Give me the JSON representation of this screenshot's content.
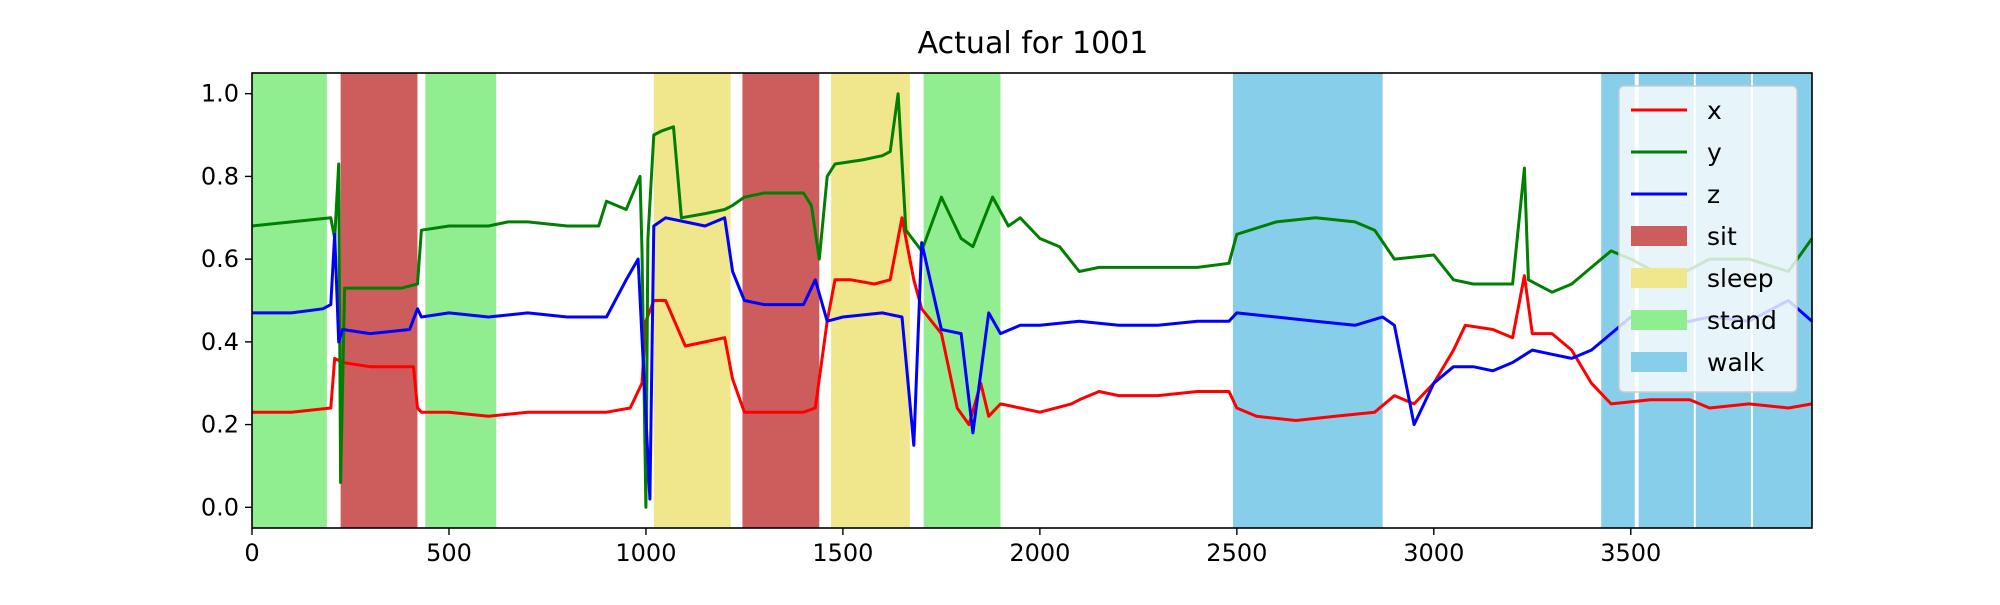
{
  "chart_data": {
    "type": "line",
    "title": "Actual for 1001",
    "xlabel": "",
    "ylabel": "",
    "xlim": [
      0,
      3960
    ],
    "ylim": [
      -0.05,
      1.05
    ],
    "x_ticks": [
      0,
      500,
      1000,
      1500,
      2000,
      2500,
      3000,
      3500
    ],
    "y_ticks": [
      0.0,
      0.2,
      0.4,
      0.6,
      0.8,
      1.0
    ],
    "grid": false,
    "legend_position": "top-right",
    "series": [
      {
        "name": "x",
        "color": "#ff0000",
        "points": [
          [
            0,
            0.23
          ],
          [
            100,
            0.23
          ],
          [
            200,
            0.24
          ],
          [
            210,
            0.36
          ],
          [
            230,
            0.35
          ],
          [
            300,
            0.34
          ],
          [
            410,
            0.34
          ],
          [
            420,
            0.24
          ],
          [
            430,
            0.23
          ],
          [
            500,
            0.23
          ],
          [
            600,
            0.22
          ],
          [
            700,
            0.23
          ],
          [
            800,
            0.23
          ],
          [
            900,
            0.23
          ],
          [
            960,
            0.24
          ],
          [
            990,
            0.3
          ],
          [
            1000,
            0.45
          ],
          [
            1020,
            0.5
          ],
          [
            1050,
            0.5
          ],
          [
            1100,
            0.39
          ],
          [
            1150,
            0.4
          ],
          [
            1200,
            0.41
          ],
          [
            1220,
            0.31
          ],
          [
            1250,
            0.23
          ],
          [
            1300,
            0.23
          ],
          [
            1400,
            0.23
          ],
          [
            1430,
            0.24
          ],
          [
            1460,
            0.45
          ],
          [
            1480,
            0.55
          ],
          [
            1520,
            0.55
          ],
          [
            1580,
            0.54
          ],
          [
            1620,
            0.55
          ],
          [
            1650,
            0.7
          ],
          [
            1680,
            0.55
          ],
          [
            1700,
            0.48
          ],
          [
            1750,
            0.42
          ],
          [
            1790,
            0.24
          ],
          [
            1820,
            0.2
          ],
          [
            1850,
            0.3
          ],
          [
            1870,
            0.22
          ],
          [
            1900,
            0.25
          ],
          [
            1950,
            0.24
          ],
          [
            2000,
            0.23
          ],
          [
            2080,
            0.25
          ],
          [
            2100,
            0.26
          ],
          [
            2150,
            0.28
          ],
          [
            2200,
            0.27
          ],
          [
            2300,
            0.27
          ],
          [
            2400,
            0.28
          ],
          [
            2480,
            0.28
          ],
          [
            2500,
            0.24
          ],
          [
            2550,
            0.22
          ],
          [
            2650,
            0.21
          ],
          [
            2750,
            0.22
          ],
          [
            2850,
            0.23
          ],
          [
            2900,
            0.27
          ],
          [
            2950,
            0.25
          ],
          [
            3000,
            0.3
          ],
          [
            3050,
            0.38
          ],
          [
            3080,
            0.44
          ],
          [
            3150,
            0.43
          ],
          [
            3200,
            0.41
          ],
          [
            3230,
            0.56
          ],
          [
            3250,
            0.42
          ],
          [
            3300,
            0.42
          ],
          [
            3350,
            0.38
          ],
          [
            3400,
            0.3
          ],
          [
            3450,
            0.25
          ],
          [
            3550,
            0.26
          ],
          [
            3650,
            0.26
          ],
          [
            3700,
            0.24
          ],
          [
            3800,
            0.25
          ],
          [
            3900,
            0.24
          ],
          [
            3960,
            0.25
          ]
        ]
      },
      {
        "name": "y",
        "color": "#008000",
        "points": [
          [
            0,
            0.68
          ],
          [
            100,
            0.69
          ],
          [
            200,
            0.7
          ],
          [
            210,
            0.65
          ],
          [
            220,
            0.83
          ],
          [
            225,
            0.06
          ],
          [
            235,
            0.53
          ],
          [
            300,
            0.53
          ],
          [
            380,
            0.53
          ],
          [
            420,
            0.54
          ],
          [
            430,
            0.67
          ],
          [
            500,
            0.68
          ],
          [
            580,
            0.68
          ],
          [
            600,
            0.68
          ],
          [
            650,
            0.69
          ],
          [
            700,
            0.69
          ],
          [
            800,
            0.68
          ],
          [
            880,
            0.68
          ],
          [
            900,
            0.74
          ],
          [
            950,
            0.72
          ],
          [
            985,
            0.8
          ],
          [
            990,
            0.62
          ],
          [
            1000,
            0.0
          ],
          [
            1005,
            0.65
          ],
          [
            1020,
            0.9
          ],
          [
            1040,
            0.91
          ],
          [
            1070,
            0.92
          ],
          [
            1090,
            0.7
          ],
          [
            1150,
            0.71
          ],
          [
            1200,
            0.72
          ],
          [
            1220,
            0.73
          ],
          [
            1250,
            0.75
          ],
          [
            1300,
            0.76
          ],
          [
            1400,
            0.76
          ],
          [
            1420,
            0.73
          ],
          [
            1440,
            0.6
          ],
          [
            1460,
            0.8
          ],
          [
            1480,
            0.83
          ],
          [
            1550,
            0.84
          ],
          [
            1600,
            0.85
          ],
          [
            1620,
            0.86
          ],
          [
            1640,
            1.0
          ],
          [
            1660,
            0.67
          ],
          [
            1700,
            0.62
          ],
          [
            1750,
            0.75
          ],
          [
            1800,
            0.65
          ],
          [
            1830,
            0.63
          ],
          [
            1880,
            0.75
          ],
          [
            1920,
            0.68
          ],
          [
            1950,
            0.7
          ],
          [
            2000,
            0.65
          ],
          [
            2050,
            0.63
          ],
          [
            2100,
            0.57
          ],
          [
            2150,
            0.58
          ],
          [
            2200,
            0.58
          ],
          [
            2300,
            0.58
          ],
          [
            2400,
            0.58
          ],
          [
            2480,
            0.59
          ],
          [
            2500,
            0.66
          ],
          [
            2600,
            0.69
          ],
          [
            2700,
            0.7
          ],
          [
            2800,
            0.69
          ],
          [
            2850,
            0.67
          ],
          [
            2900,
            0.6
          ],
          [
            3000,
            0.61
          ],
          [
            3050,
            0.55
          ],
          [
            3100,
            0.54
          ],
          [
            3200,
            0.54
          ],
          [
            3230,
            0.82
          ],
          [
            3240,
            0.55
          ],
          [
            3300,
            0.52
          ],
          [
            3350,
            0.54
          ],
          [
            3400,
            0.58
          ],
          [
            3450,
            0.62
          ],
          [
            3500,
            0.6
          ],
          [
            3600,
            0.55
          ],
          [
            3700,
            0.6
          ],
          [
            3800,
            0.6
          ],
          [
            3900,
            0.57
          ],
          [
            3960,
            0.65
          ]
        ]
      },
      {
        "name": "z",
        "color": "#0000ff",
        "points": [
          [
            0,
            0.47
          ],
          [
            100,
            0.47
          ],
          [
            180,
            0.48
          ],
          [
            200,
            0.49
          ],
          [
            210,
            0.66
          ],
          [
            220,
            0.4
          ],
          [
            230,
            0.43
          ],
          [
            300,
            0.42
          ],
          [
            400,
            0.43
          ],
          [
            420,
            0.48
          ],
          [
            430,
            0.46
          ],
          [
            500,
            0.47
          ],
          [
            600,
            0.46
          ],
          [
            700,
            0.47
          ],
          [
            800,
            0.46
          ],
          [
            900,
            0.46
          ],
          [
            950,
            0.55
          ],
          [
            980,
            0.6
          ],
          [
            1000,
            0.22
          ],
          [
            1010,
            0.02
          ],
          [
            1020,
            0.68
          ],
          [
            1050,
            0.7
          ],
          [
            1100,
            0.69
          ],
          [
            1150,
            0.68
          ],
          [
            1200,
            0.7
          ],
          [
            1220,
            0.57
          ],
          [
            1250,
            0.5
          ],
          [
            1300,
            0.49
          ],
          [
            1400,
            0.49
          ],
          [
            1430,
            0.55
          ],
          [
            1460,
            0.45
          ],
          [
            1500,
            0.46
          ],
          [
            1600,
            0.47
          ],
          [
            1650,
            0.46
          ],
          [
            1680,
            0.15
          ],
          [
            1700,
            0.64
          ],
          [
            1750,
            0.43
          ],
          [
            1800,
            0.42
          ],
          [
            1830,
            0.18
          ],
          [
            1870,
            0.47
          ],
          [
            1900,
            0.42
          ],
          [
            1950,
            0.44
          ],
          [
            2000,
            0.44
          ],
          [
            2100,
            0.45
          ],
          [
            2200,
            0.44
          ],
          [
            2300,
            0.44
          ],
          [
            2400,
            0.45
          ],
          [
            2480,
            0.45
          ],
          [
            2500,
            0.47
          ],
          [
            2600,
            0.46
          ],
          [
            2700,
            0.45
          ],
          [
            2800,
            0.44
          ],
          [
            2870,
            0.46
          ],
          [
            2900,
            0.44
          ],
          [
            2950,
            0.2
          ],
          [
            3000,
            0.3
          ],
          [
            3050,
            0.34
          ],
          [
            3100,
            0.34
          ],
          [
            3150,
            0.33
          ],
          [
            3200,
            0.35
          ],
          [
            3250,
            0.38
          ],
          [
            3300,
            0.37
          ],
          [
            3350,
            0.36
          ],
          [
            3400,
            0.38
          ],
          [
            3450,
            0.42
          ],
          [
            3500,
            0.46
          ],
          [
            3600,
            0.44
          ],
          [
            3700,
            0.46
          ],
          [
            3800,
            0.45
          ],
          [
            3900,
            0.5
          ],
          [
            3960,
            0.45
          ]
        ]
      }
    ],
    "regions": [
      {
        "label": "stand",
        "x0": 0,
        "x1": 190
      },
      {
        "label": "sit",
        "x0": 225,
        "x1": 420
      },
      {
        "label": "stand",
        "x0": 440,
        "x1": 620
      },
      {
        "label": "sleep",
        "x0": 1020,
        "x1": 1215
      },
      {
        "label": "sit",
        "x0": 1245,
        "x1": 1440
      },
      {
        "label": "sleep",
        "x0": 1470,
        "x1": 1670
      },
      {
        "label": "stand",
        "x0": 1705,
        "x1": 1900
      },
      {
        "label": "walk",
        "x0": 2490,
        "x1": 2870
      },
      {
        "label": "walk",
        "x0": 3425,
        "x1": 3510
      },
      {
        "label": "walk",
        "x0": 3520,
        "x1": 3660
      },
      {
        "label": "walk",
        "x0": 3665,
        "x1": 3805
      },
      {
        "label": "walk",
        "x0": 3810,
        "x1": 3960
      }
    ],
    "region_colors": {
      "sit": "#cd5c5c",
      "sleep": "#f0e68c",
      "stand": "#90ee90",
      "walk": "#87ceeb"
    },
    "legend": [
      {
        "label": "x",
        "kind": "line",
        "color": "#ff0000"
      },
      {
        "label": "y",
        "kind": "line",
        "color": "#008000"
      },
      {
        "label": "z",
        "kind": "line",
        "color": "#0000ff"
      },
      {
        "label": "sit",
        "kind": "patch",
        "color": "#cd5c5c"
      },
      {
        "label": "sleep",
        "kind": "patch",
        "color": "#f0e68c"
      },
      {
        "label": "stand",
        "kind": "patch",
        "color": "#90ee90"
      },
      {
        "label": "walk",
        "kind": "patch",
        "color": "#87ceeb"
      }
    ]
  }
}
